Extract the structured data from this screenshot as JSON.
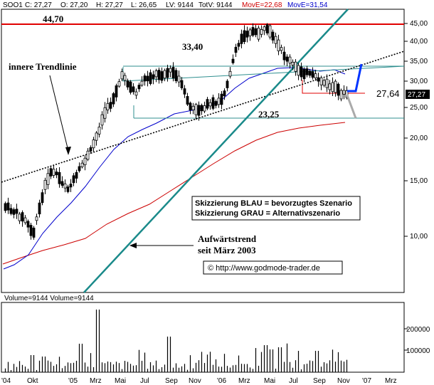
{
  "header": {
    "symbol": "SOO1",
    "c": "C: 27,27",
    "o": "O: 27,20",
    "h": "H: 27,27",
    "l": "L: 26,65",
    "lv": "LV: 9144",
    "totv": "TotV: 9144",
    "move1": "MovE=22,68",
    "move2": "MovE=31,54",
    "move1_color": "#d00000",
    "move2_color": "#0000cc"
  },
  "volume_header": "Volume=9144 Volume=9144",
  "price_axis": {
    "ticks": [
      "45,00",
      "40,00",
      "35,00",
      "30,00",
      "25,00",
      "20,00",
      "15,00",
      "10,00"
    ],
    "last_label": "27,27"
  },
  "volume_axis": {
    "ticks": [
      "200000",
      "100000"
    ]
  },
  "x_axis": {
    "ticks": [
      "'04",
      "Okt",
      "'05",
      "Mrz",
      "Mai",
      "Jul",
      "Sep",
      "Nov",
      "'06",
      "Mrz",
      "Mai",
      "Jul",
      "Sep",
      "Nov",
      "'07",
      "Mrz"
    ]
  },
  "annotations": {
    "level_44": "44,70",
    "level_33": "33,40",
    "level_23": "23,25",
    "level_27": "27,64",
    "inner_trend": "innere Trendlinie",
    "uptrend_line1": "Aufwärtstrend",
    "uptrend_line2": "seit März 2003",
    "scenario_blue": "Skizzierung BLAU = bevorzugtes Szenario",
    "scenario_grey": "Skizzierung GRAU = Alternativszenario",
    "copyright": "©  http://www.godmode-trader.de"
  },
  "colors": {
    "resistance": "#e00000",
    "support": "#2f8f8f",
    "uptrend": "#1a8a8a",
    "ma_long": "#cc0000",
    "ma_short": "#0000cc",
    "scenario_blue": "#0033ff",
    "scenario_grey": "#aaaaaa"
  },
  "chart_data": {
    "type": "candlestick",
    "price_scale": "log",
    "ylim": [
      7,
      50
    ],
    "levels": [
      44.7,
      33.4,
      27.64,
      23.25
    ],
    "last_price": 27.27,
    "volume_max": 300000
  }
}
